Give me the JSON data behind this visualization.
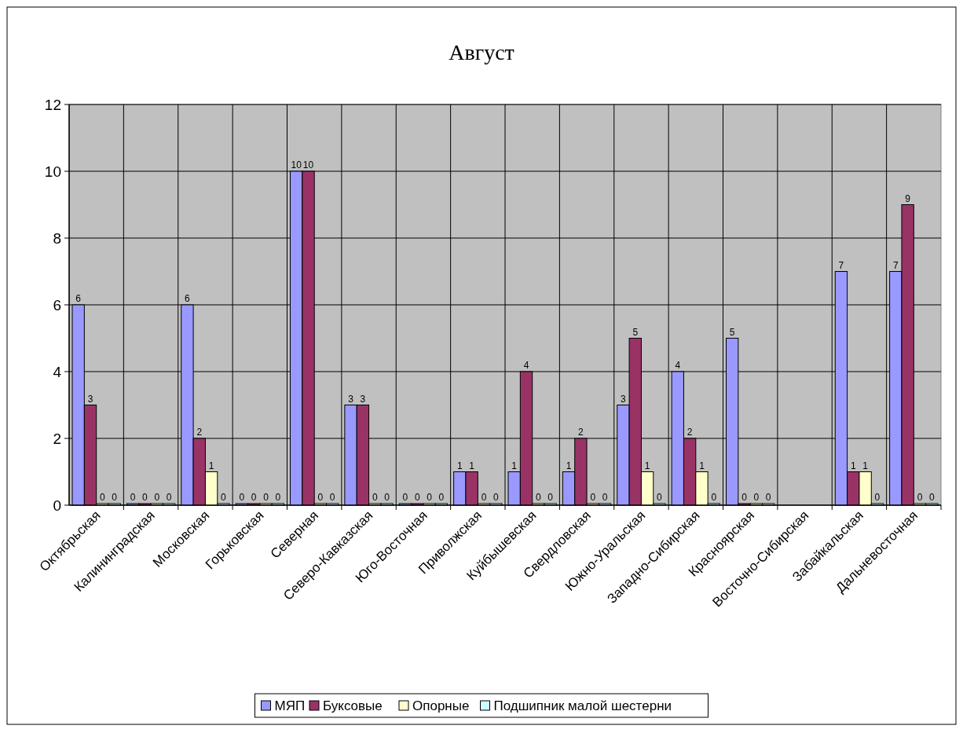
{
  "chart_data": {
    "type": "bar",
    "title": "Август",
    "categories": [
      "Октябрьская",
      "Калининградская",
      "Московская",
      "Горьковская",
      "Северная",
      "Северо-Кавказская",
      "Юго-Восточная",
      "Приволжская",
      "Куйбышевская",
      "Свердловская",
      "Южно-Уральская",
      "Западно-Сибирская",
      "Красноярская",
      "Восточно-Сибирская",
      "Забайкальская",
      "Дальневосточная"
    ],
    "series": [
      {
        "name": "МЯП",
        "color": "#9999ff",
        "values": [
          6,
          0,
          6,
          0,
          10,
          3,
          0,
          1,
          1,
          1,
          3,
          4,
          5,
          null,
          7,
          7
        ]
      },
      {
        "name": "Буксовые",
        "color": "#993366",
        "values": [
          3,
          0,
          2,
          0,
          10,
          3,
          0,
          1,
          4,
          2,
          5,
          2,
          0,
          null,
          1,
          9
        ]
      },
      {
        "name": "Опорные",
        "color": "#ffffcc",
        "values": [
          0,
          0,
          1,
          0,
          0,
          0,
          0,
          0,
          0,
          0,
          1,
          1,
          0,
          null,
          1,
          0
        ]
      },
      {
        "name": "Подшипник малой шестерни",
        "color": "#ccffff",
        "values": [
          0,
          0,
          0,
          0,
          0,
          0,
          0,
          0,
          0,
          0,
          0,
          0,
          0,
          null,
          0,
          0
        ]
      }
    ],
    "ylim": [
      0,
      12
    ],
    "yticks": [
      0,
      2,
      4,
      6,
      8,
      10,
      12
    ],
    "grid": true,
    "legend": "bottom",
    "data_labels": true
  }
}
